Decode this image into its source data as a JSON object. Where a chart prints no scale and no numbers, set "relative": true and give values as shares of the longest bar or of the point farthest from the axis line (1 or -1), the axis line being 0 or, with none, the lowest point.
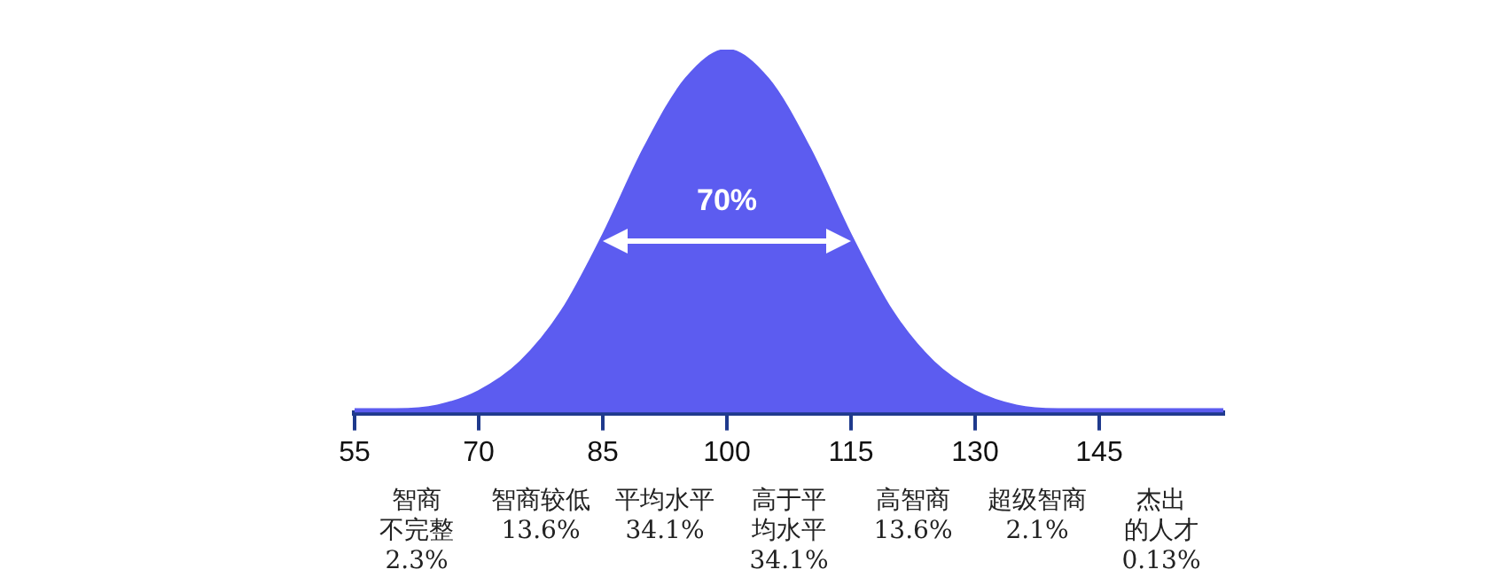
{
  "chart_data": {
    "type": "area",
    "relative": true,
    "color": "#5c5cf0",
    "x": [
      55,
      60,
      65,
      70,
      75,
      80,
      85,
      90,
      95,
      100,
      105,
      110,
      115,
      120,
      125,
      130,
      135,
      140,
      145,
      150,
      155,
      160
    ],
    "values": [
      0.01,
      0.01,
      0.02,
      0.06,
      0.14,
      0.28,
      0.49,
      0.73,
      0.92,
      1,
      0.92,
      0.73,
      0.49,
      0.28,
      0.14,
      0.06,
      0.02,
      0.01,
      0.01,
      0.01,
      0.01,
      0.01
    ],
    "xlim": [
      55,
      160
    ],
    "xticks": [
      55,
      70,
      85,
      100,
      115,
      130,
      145
    ],
    "annotations": [
      "70%",
      "智商不完整\n2.3%",
      "智商较低\n13.6%",
      "平均水平\n34.1%",
      "高于平均水平\n34.1%",
      "高智商\n13.6%",
      "超级智商\n2.1%",
      "杰出的人才\n0.13%"
    ]
  }
}
